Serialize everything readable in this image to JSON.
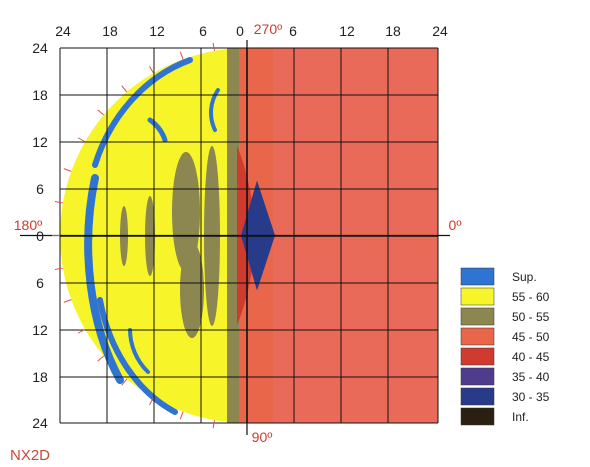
{
  "chart_data": {
    "type": "heatmap",
    "figure_label": "NX2D",
    "x_ticks_left": [
      "24",
      "18",
      "12",
      "6"
    ],
    "x_tick_center": "0",
    "x_ticks_right": [
      "6",
      "12",
      "18",
      "24"
    ],
    "y_ticks": [
      "24",
      "18",
      "12",
      "6",
      "0",
      "6",
      "12",
      "18",
      "24"
    ],
    "angle_labels": {
      "top": "270º",
      "bottom": "90º",
      "left": "180º",
      "right": "0º"
    },
    "xlim": [
      -24,
      24
    ],
    "ylim": [
      -24,
      24
    ],
    "grid": true,
    "legend_position": "right",
    "legend": [
      {
        "label": "Sup.",
        "color": "#2f74d0"
      },
      {
        "label": "55 - 60",
        "color": "#f7f52a"
      },
      {
        "label": "50 - 55",
        "color": "#8c8650"
      },
      {
        "label": "45 - 50",
        "color": "#e9664a"
      },
      {
        "label": "40 - 45",
        "color": "#d13a2e"
      },
      {
        "label": "35 - 40",
        "color": "#4f3c8c"
      },
      {
        "label": "30 - 35",
        "color": "#283a8a"
      },
      {
        "label": "Inf.",
        "color": "#2a1f10"
      }
    ],
    "colors": {
      "right_field": "#ea6a5a",
      "half_disk": "#f7f52a",
      "olive_band": "#8c8650",
      "orange_band": "#e9664a",
      "red_band": "#d13a2e",
      "navy_wedge": "#283a8a",
      "blue_arcs": "#2f74d0",
      "grid": "#111111",
      "tick_marks": "#e05040",
      "angle_text": "#d03a2a"
    }
  }
}
